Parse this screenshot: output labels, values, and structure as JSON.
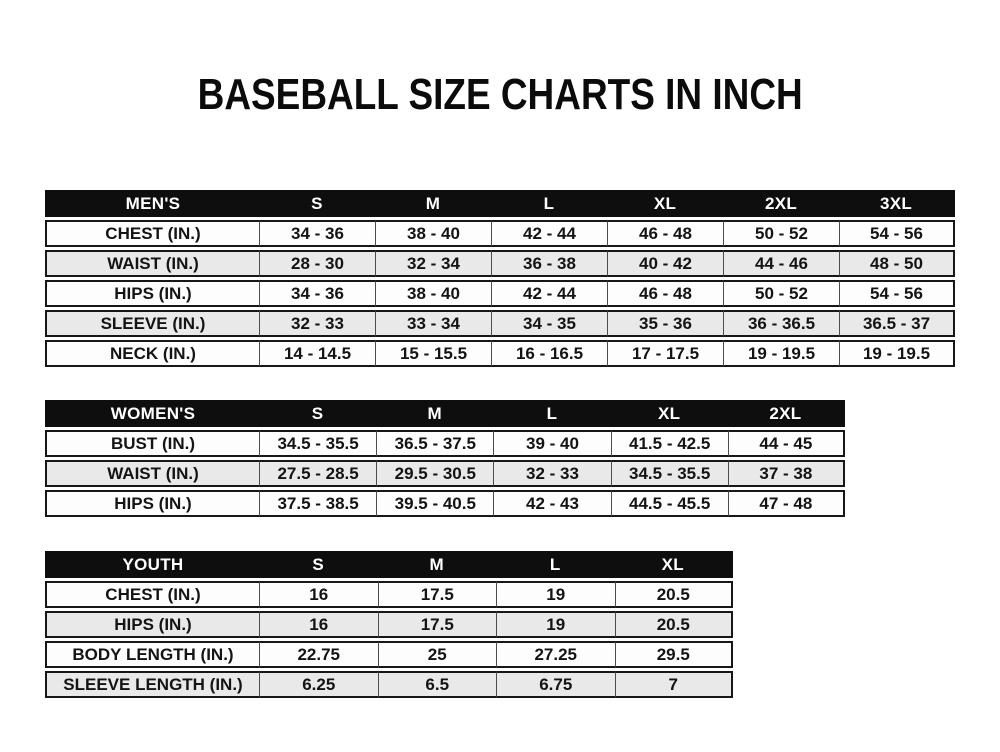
{
  "page": {
    "title": "BASEBALL SIZE CHARTS IN INCH"
  },
  "colors": {
    "header_bg": "#0e0e0e",
    "header_text": "#ffffff",
    "row_white": "#fdfdfd",
    "row_gray": "#e9e9e9",
    "border_dark": "#171717",
    "divider_gray": "#4d4d4d",
    "text": "#141414",
    "page_bg": "#ffffff"
  },
  "tables": [
    {
      "name": "mens",
      "header_label": "MEN'S",
      "sizes": [
        "S",
        "M",
        "L",
        "XL",
        "2XL",
        "3XL"
      ],
      "rows": [
        {
          "label": "CHEST (IN.)",
          "values": [
            "34 - 36",
            "38 - 40",
            "42 - 44",
            "46 - 48",
            "50 - 52",
            "54 - 56"
          ]
        },
        {
          "label": "WAIST (IN.)",
          "values": [
            "28 - 30",
            "32 - 34",
            "36 - 38",
            "40 - 42",
            "44 - 46",
            "48 - 50"
          ]
        },
        {
          "label": "HIPS (IN.)",
          "values": [
            "34 - 36",
            "38 - 40",
            "42 - 44",
            "46 - 48",
            "50 - 52",
            "54 - 56"
          ]
        },
        {
          "label": "SLEEVE (IN.)",
          "values": [
            "32 - 33",
            "33 - 34",
            "34 - 35",
            "35 - 36",
            "36 - 36.5",
            "36.5 - 37"
          ]
        },
        {
          "label": "NECK (IN.)",
          "values": [
            "14 - 14.5",
            "15 - 15.5",
            "16 - 16.5",
            "17 - 17.5",
            "19 - 19.5",
            "19 - 19.5"
          ]
        }
      ]
    },
    {
      "name": "womens",
      "header_label": "WOMEN'S",
      "sizes": [
        "S",
        "M",
        "L",
        "XL",
        "2XL"
      ],
      "rows": [
        {
          "label": "BUST (IN.)",
          "values": [
            "34.5 - 35.5",
            "36.5 - 37.5",
            "39 - 40",
            "41.5 - 42.5",
            "44 - 45"
          ]
        },
        {
          "label": "WAIST (IN.)",
          "values": [
            "27.5 - 28.5",
            "29.5 - 30.5",
            "32 - 33",
            "34.5 - 35.5",
            "37 - 38"
          ]
        },
        {
          "label": "HIPS (IN.)",
          "values": [
            "37.5 - 38.5",
            "39.5 - 40.5",
            "42 - 43",
            "44.5 - 45.5",
            "47 - 48"
          ]
        }
      ]
    },
    {
      "name": "youth",
      "header_label": "YOUTH",
      "sizes": [
        "S",
        "M",
        "L",
        "XL"
      ],
      "rows": [
        {
          "label": "CHEST (IN.)",
          "values": [
            "16",
            "17.5",
            "19",
            "20.5"
          ]
        },
        {
          "label": "HIPS (IN.)",
          "values": [
            "16",
            "17.5",
            "19",
            "20.5"
          ]
        },
        {
          "label": "BODY LENGTH (IN.)",
          "values": [
            "22.75",
            "25",
            "27.25",
            "29.5"
          ]
        },
        {
          "label": "SLEEVE LENGTH (IN.)",
          "values": [
            "6.25",
            "6.5",
            "6.75",
            "7"
          ]
        }
      ]
    }
  ]
}
